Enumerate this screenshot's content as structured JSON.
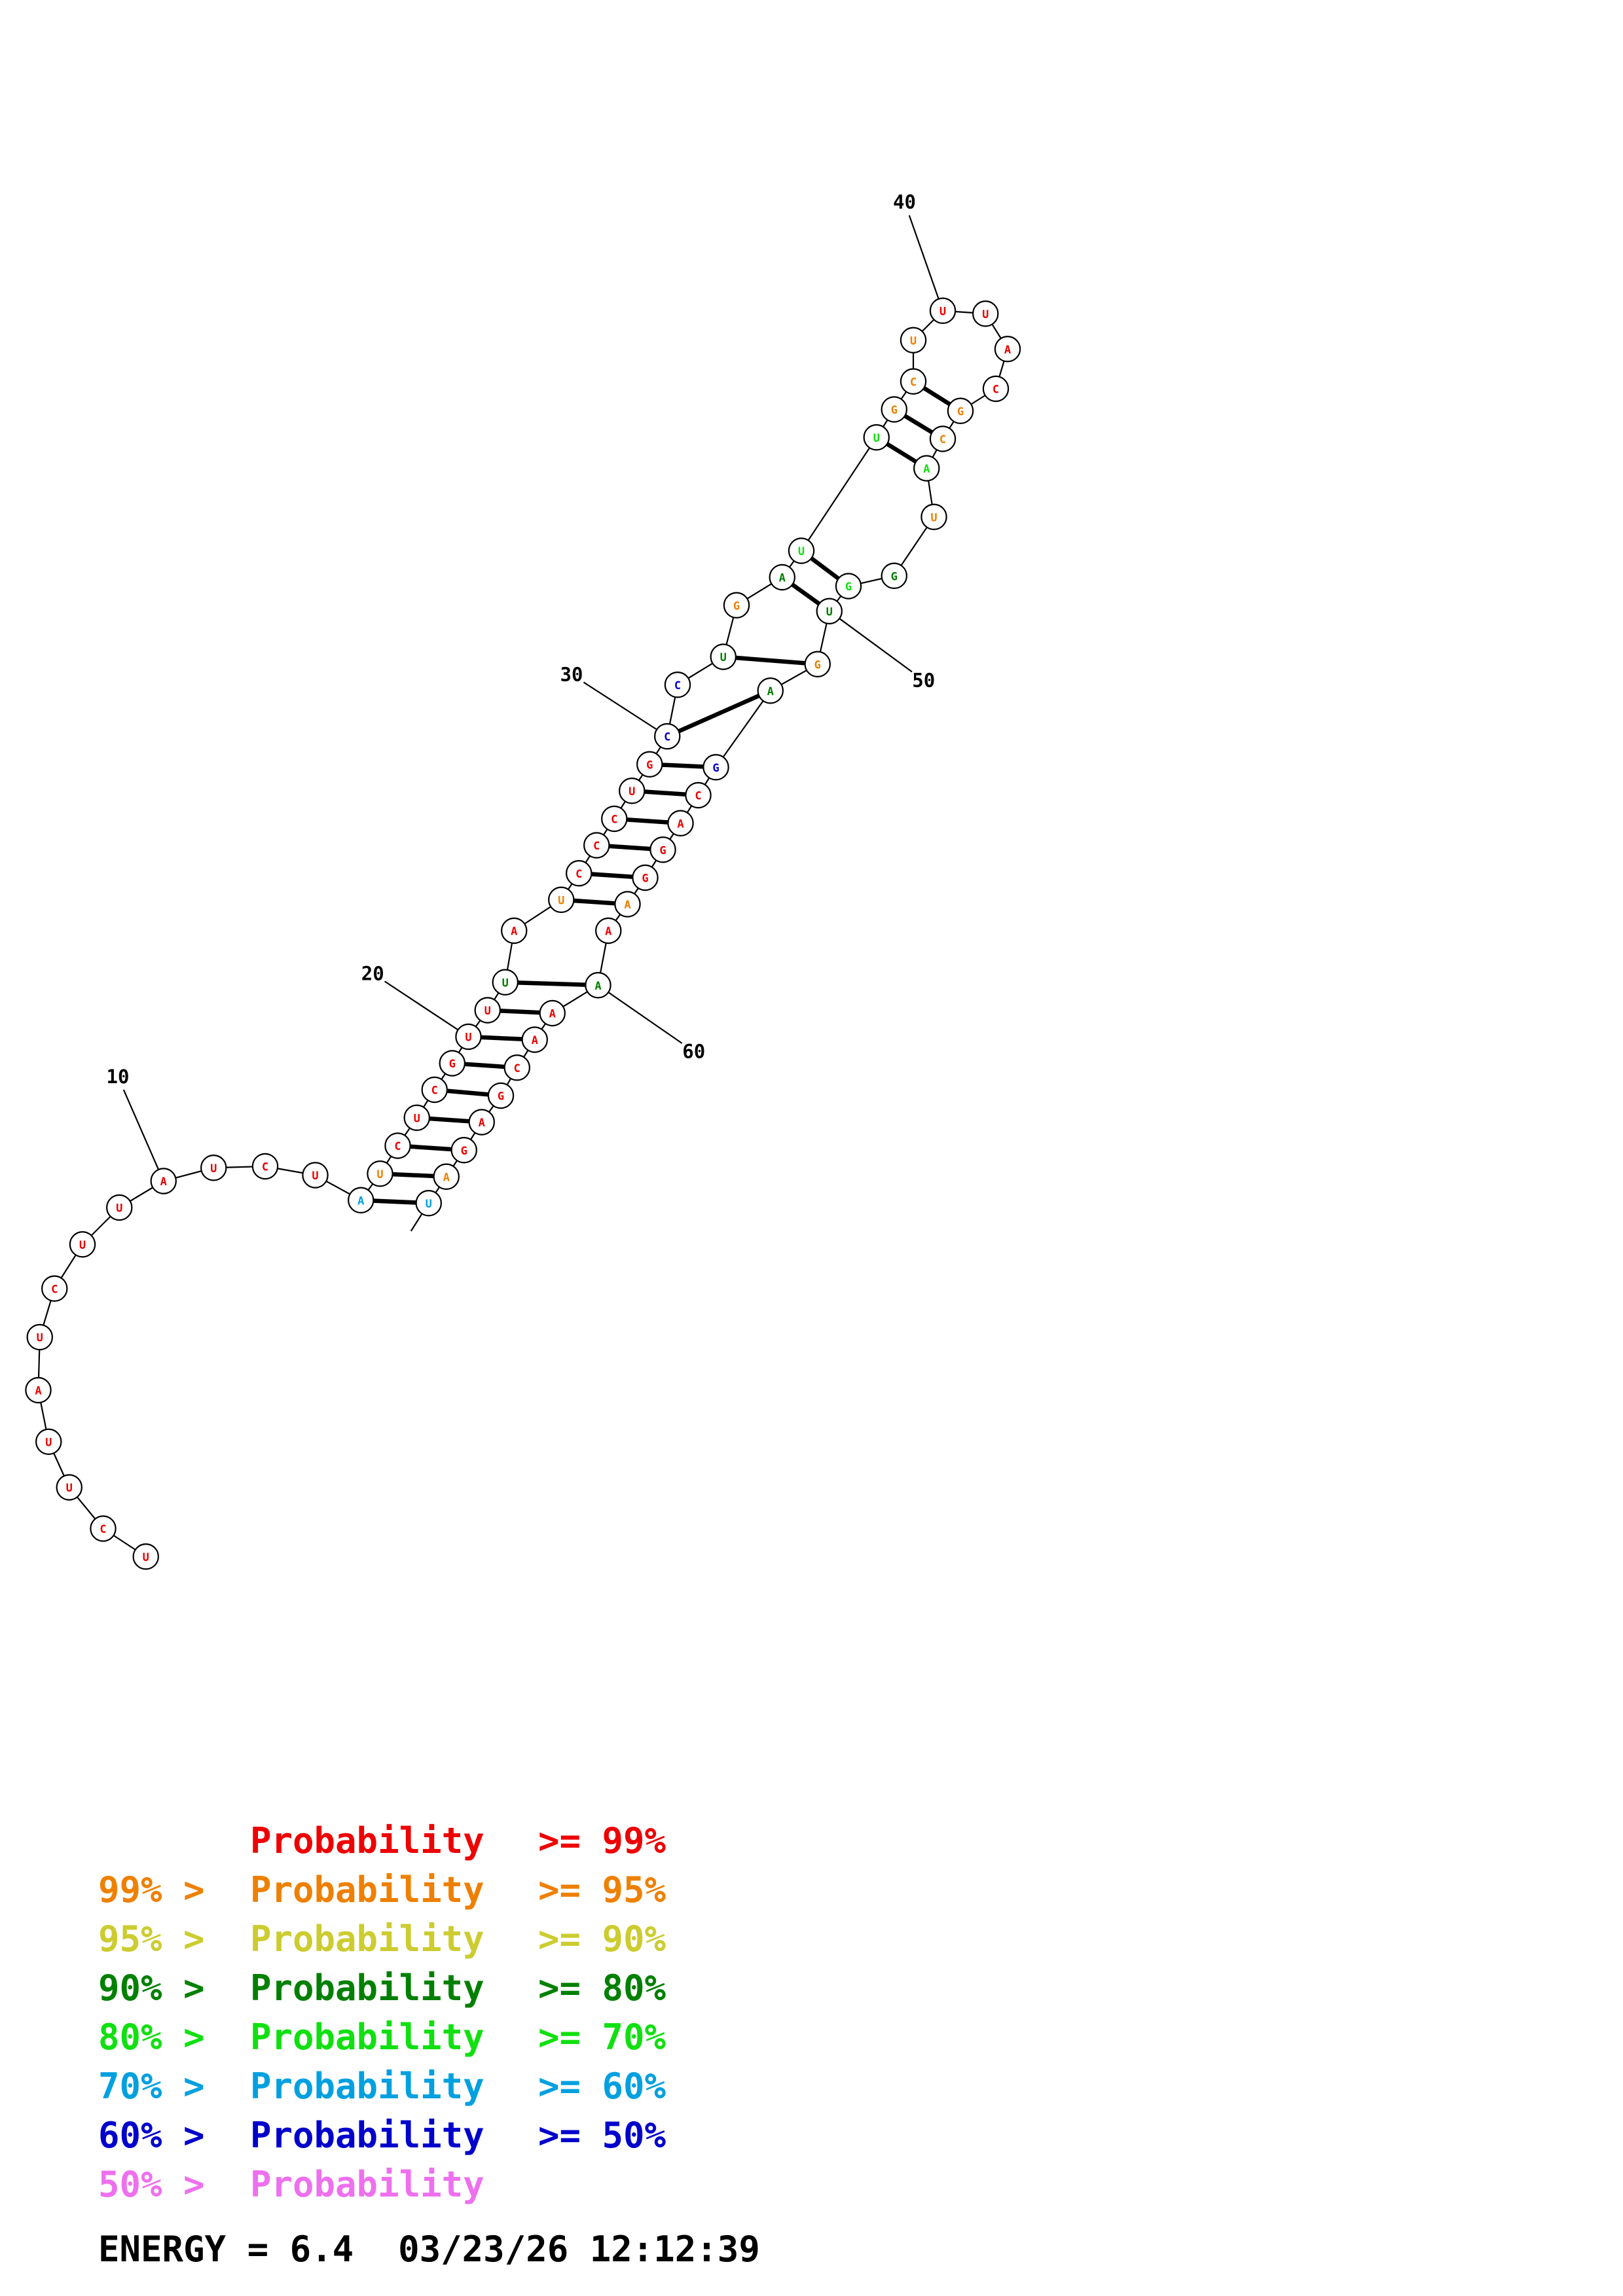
{
  "colors": {
    "p99": "#ee0000",
    "p95": "#ee8000",
    "p90": "#cccc30",
    "p80": "#008000",
    "p70": "#10e010",
    "p60": "#00a0e0",
    "p50": "#0000cc",
    "plow": "#ee70ee"
  },
  "sequence": [
    {
      "n": 1,
      "base": "U",
      "prob": "p99"
    },
    {
      "n": 2,
      "base": "C",
      "prob": "p99"
    },
    {
      "n": 3,
      "base": "U",
      "prob": "p99"
    },
    {
      "n": 4,
      "base": "U",
      "prob": "p99"
    },
    {
      "n": 5,
      "base": "A",
      "prob": "p99"
    },
    {
      "n": 6,
      "base": "U",
      "prob": "p99"
    },
    {
      "n": 7,
      "base": "C",
      "prob": "p99"
    },
    {
      "n": 8,
      "base": "U",
      "prob": "p99"
    },
    {
      "n": 9,
      "base": "U",
      "prob": "p99"
    },
    {
      "n": 10,
      "base": "A",
      "prob": "p99"
    },
    {
      "n": 11,
      "base": "U",
      "prob": "p99"
    },
    {
      "n": 12,
      "base": "C",
      "prob": "p99"
    },
    {
      "n": 13,
      "base": "U",
      "prob": "p99"
    },
    {
      "n": 14,
      "base": "A",
      "prob": "p60"
    },
    {
      "n": 15,
      "base": "U",
      "prob": "p95"
    },
    {
      "n": 16,
      "base": "C",
      "prob": "p99"
    },
    {
      "n": 17,
      "base": "U",
      "prob": "p99"
    },
    {
      "n": 18,
      "base": "C",
      "prob": "p99"
    },
    {
      "n": 19,
      "base": "G",
      "prob": "p99"
    },
    {
      "n": 20,
      "base": "U",
      "prob": "p99"
    },
    {
      "n": 21,
      "base": "U",
      "prob": "p99"
    },
    {
      "n": 22,
      "base": "U",
      "prob": "p80"
    },
    {
      "n": 23,
      "base": "A",
      "prob": "p99"
    },
    {
      "n": 24,
      "base": "U",
      "prob": "p95"
    },
    {
      "n": 25,
      "base": "C",
      "prob": "p99"
    },
    {
      "n": 26,
      "base": "C",
      "prob": "p99"
    },
    {
      "n": 27,
      "base": "C",
      "prob": "p99"
    },
    {
      "n": 28,
      "base": "U",
      "prob": "p99"
    },
    {
      "n": 29,
      "base": "G",
      "prob": "p99"
    },
    {
      "n": 30,
      "base": "C",
      "prob": "p50"
    },
    {
      "n": 31,
      "base": "C",
      "prob": "p50"
    },
    {
      "n": 32,
      "base": "U",
      "prob": "p80"
    },
    {
      "n": 33,
      "base": "G",
      "prob": "p95"
    },
    {
      "n": 34,
      "base": "A",
      "prob": "p80"
    },
    {
      "n": 35,
      "base": "U",
      "prob": "p70"
    },
    {
      "n": 36,
      "base": "U",
      "prob": "p70"
    },
    {
      "n": 37,
      "base": "G",
      "prob": "p95"
    },
    {
      "n": 38,
      "base": "C",
      "prob": "p95"
    },
    {
      "n": 39,
      "base": "U",
      "prob": "p95"
    },
    {
      "n": 40,
      "base": "U",
      "prob": "p99"
    },
    {
      "n": 41,
      "base": "U",
      "prob": "p99"
    },
    {
      "n": 42,
      "base": "A",
      "prob": "p99"
    },
    {
      "n": 43,
      "base": "C",
      "prob": "p99"
    },
    {
      "n": 44,
      "base": "G",
      "prob": "p95"
    },
    {
      "n": 45,
      "base": "C",
      "prob": "p95"
    },
    {
      "n": 46,
      "base": "A",
      "prob": "p70"
    },
    {
      "n": 47,
      "base": "U",
      "prob": "p95"
    },
    {
      "n": 48,
      "base": "G",
      "prob": "p80"
    },
    {
      "n": 49,
      "base": "G",
      "prob": "p70"
    },
    {
      "n": 50,
      "base": "U",
      "prob": "p80"
    },
    {
      "n": 51,
      "base": "G",
      "prob": "p95"
    },
    {
      "n": 52,
      "base": "A",
      "prob": "p80"
    },
    {
      "n": 53,
      "base": "G",
      "prob": "p50"
    },
    {
      "n": 54,
      "base": "C",
      "prob": "p99"
    },
    {
      "n": 55,
      "base": "A",
      "prob": "p99"
    },
    {
      "n": 56,
      "base": "G",
      "prob": "p99"
    },
    {
      "n": 57,
      "base": "G",
      "prob": "p99"
    },
    {
      "n": 58,
      "base": "A",
      "prob": "p95"
    },
    {
      "n": 59,
      "base": "A",
      "prob": "p99"
    },
    {
      "n": 60,
      "base": "A",
      "prob": "p80"
    },
    {
      "n": 61,
      "base": "A",
      "prob": "p99"
    },
    {
      "n": 62,
      "base": "A",
      "prob": "p99"
    },
    {
      "n": 63,
      "base": "C",
      "prob": "p99"
    },
    {
      "n": 64,
      "base": "G",
      "prob": "p99"
    },
    {
      "n": 65,
      "base": "A",
      "prob": "p99"
    },
    {
      "n": 66,
      "base": "G",
      "prob": "p99"
    },
    {
      "n": 67,
      "base": "A",
      "prob": "p95"
    },
    {
      "n": 68,
      "base": "U",
      "prob": "p60"
    }
  ],
  "pairs": [
    [
      14,
      68
    ],
    [
      15,
      67
    ],
    [
      16,
      66
    ],
    [
      17,
      65
    ],
    [
      18,
      64
    ],
    [
      19,
      63
    ],
    [
      20,
      62
    ],
    [
      21,
      61
    ],
    [
      22,
      60
    ],
    [
      24,
      58
    ],
    [
      25,
      57
    ],
    [
      26,
      56
    ],
    [
      27,
      55
    ],
    [
      28,
      54
    ],
    [
      29,
      53
    ],
    [
      30,
      52
    ],
    [
      32,
      51
    ],
    [
      34,
      50
    ],
    [
      35,
      49
    ],
    [
      36,
      46
    ],
    [
      37,
      45
    ],
    [
      38,
      44
    ]
  ],
  "position_labels": [
    "10",
    "20",
    "30",
    "40",
    "50",
    "60"
  ],
  "legend": [
    {
      "prefix": "",
      "word": "Probability",
      "suffix": ">= 99%",
      "color": "p99"
    },
    {
      "prefix": "99% >",
      "word": "Probability",
      "suffix": ">= 95%",
      "color": "p95"
    },
    {
      "prefix": "95% >",
      "word": "Probability",
      "suffix": ">= 90%",
      "color": "p90"
    },
    {
      "prefix": "90% >",
      "word": "Probability",
      "suffix": ">= 80%",
      "color": "p80"
    },
    {
      "prefix": "80% >",
      "word": "Probability",
      "suffix": ">= 70%",
      "color": "p70"
    },
    {
      "prefix": "70% >",
      "word": "Probability",
      "suffix": ">= 60%",
      "color": "p60"
    },
    {
      "prefix": "60% >",
      "word": "Probability",
      "suffix": ">= 50%",
      "color": "p50"
    },
    {
      "prefix": "50% >",
      "word": "Probability",
      "suffix": "",
      "color": "plow"
    }
  ],
  "footer": {
    "energy": "ENERGY = 6.4",
    "timestamp": "03/23/26 12:12:39"
  }
}
